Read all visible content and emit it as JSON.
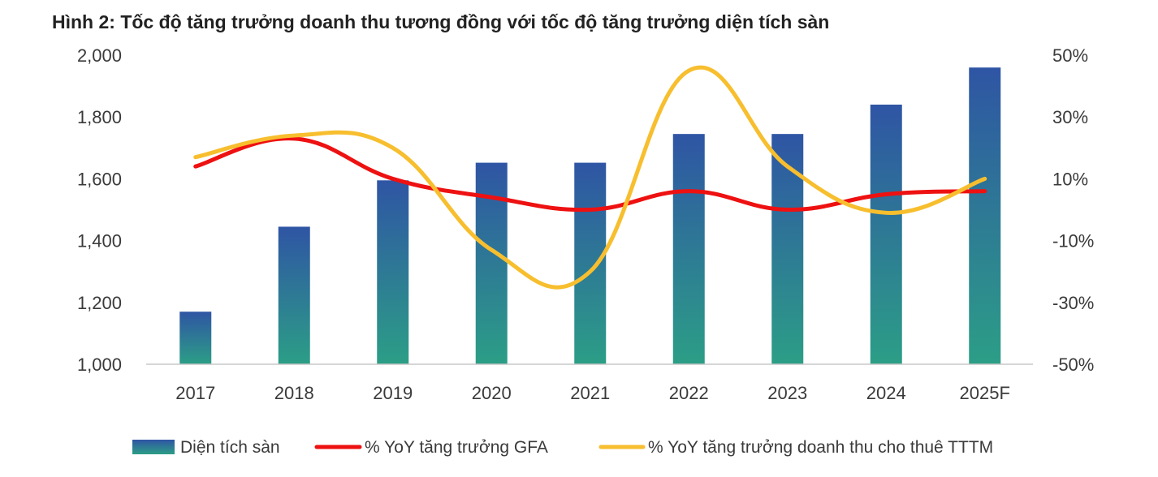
{
  "colors": {
    "bar_top": "#2f55a4",
    "bar_bottom": "#2c9e86",
    "gfa_line": "#ee1111",
    "revenue_line": "#f7be2e",
    "axis": "#c8c8c8"
  },
  "chart_data": {
    "type": "bar+line",
    "title": "Hình 2: Tốc độ tăng trưởng doanh thu tương đồng với tốc độ tăng trưởng diện tích sàn",
    "categories": [
      "2017",
      "2018",
      "2019",
      "2020",
      "2021",
      "2022",
      "2023",
      "2024",
      "2025F"
    ],
    "left_axis": {
      "min": 1000,
      "max": 2000,
      "ticks": [
        "1,000",
        "1,200",
        "1,400",
        "1,600",
        "1,800",
        "2,000"
      ],
      "tick_values": [
        1000,
        1200,
        1400,
        1600,
        1800,
        2000
      ]
    },
    "right_axis": {
      "min": -50,
      "max": 50,
      "ticks": [
        "-50%",
        "-30%",
        "-10%",
        "10%",
        "30%",
        "50%"
      ],
      "tick_values": [
        -50,
        -30,
        -10,
        10,
        30,
        50
      ]
    },
    "series": [
      {
        "name": "Diện tích sàn",
        "type": "bar",
        "axis": "left",
        "values": [
          1170,
          1445,
          1595,
          1652,
          1652,
          1745,
          1745,
          1840,
          1960
        ]
      },
      {
        "name": "% YoY tăng trưởng GFA",
        "type": "line",
        "axis": "right",
        "values": [
          14,
          23,
          10,
          4,
          0,
          6,
          0,
          5,
          6
        ]
      },
      {
        "name": "% YoY tăng trưởng doanh thu cho thuê TTTM",
        "type": "line",
        "axis": "right",
        "values": [
          17,
          24,
          20,
          -13,
          -20,
          45,
          14,
          -1,
          10
        ]
      }
    ],
    "legend": [
      "Diện tích sàn",
      "% YoY tăng trưởng GFA",
      "% YoY tăng trưởng doanh thu cho thuê TTTM"
    ]
  }
}
